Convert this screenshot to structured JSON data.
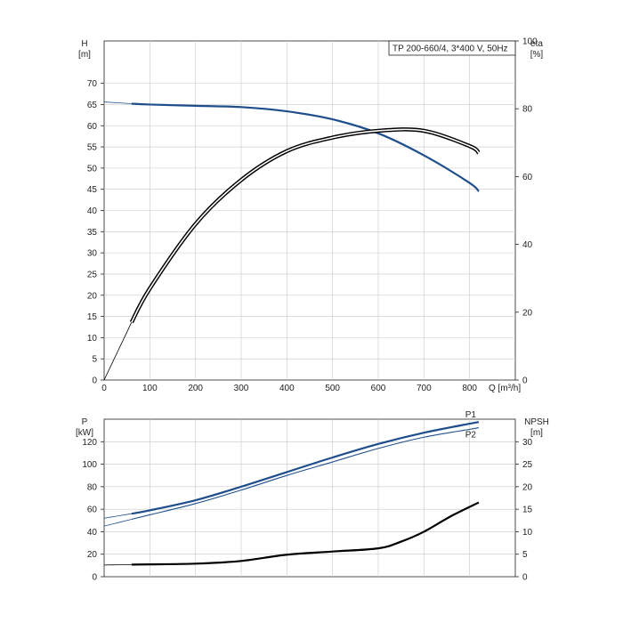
{
  "chart_data": [
    {
      "type": "line",
      "title": "TP 200-660/4, 3*400 V, 50Hz",
      "xlabel": "Q [m³/h]",
      "xlim": [
        0,
        900
      ],
      "x_ticks": [
        0,
        100,
        200,
        300,
        400,
        500,
        600,
        700,
        800
      ],
      "y_left": {
        "label_line1": "H",
        "label_line2": "[m]",
        "lim": [
          0,
          80
        ],
        "ticks": [
          0,
          5,
          10,
          15,
          20,
          25,
          30,
          35,
          40,
          45,
          50,
          55,
          60,
          65,
          70
        ]
      },
      "y_right": {
        "label_line1": "eta",
        "label_line2": "[%]",
        "lim": [
          0,
          100
        ],
        "ticks": [
          0,
          20,
          40,
          60,
          80,
          100
        ]
      },
      "grid": true,
      "series": [
        {
          "id": "H",
          "axis": "left",
          "color": "#1f4e8c",
          "x": [
            0,
            60,
            100,
            200,
            300,
            400,
            500,
            600,
            700,
            800,
            820
          ],
          "y": [
            65.6,
            65.2,
            65.0,
            64.7,
            64.4,
            63.4,
            61.5,
            58.2,
            53.0,
            46.5,
            44.5
          ]
        },
        {
          "id": "eta",
          "axis": "right",
          "color": "#000000",
          "x": [
            0,
            60,
            100,
            200,
            300,
            400,
            500,
            600,
            700,
            800,
            820
          ],
          "y": [
            0,
            17,
            27,
            46,
            59,
            67.5,
            71.5,
            73.5,
            73.5,
            69,
            67
          ]
        }
      ]
    },
    {
      "type": "line",
      "xlim": [
        0,
        900
      ],
      "y_left": {
        "label_line1": "P",
        "label_line2": "[kW]",
        "lim": [
          0,
          140
        ],
        "ticks": [
          0,
          20,
          40,
          60,
          80,
          100,
          120
        ]
      },
      "y_right": {
        "label_line1": "NPSH",
        "label_line2": "[m]",
        "lim": [
          0,
          35
        ],
        "ticks": [
          0,
          5,
          10,
          15,
          20,
          25,
          30
        ]
      },
      "grid": true,
      "series": [
        {
          "name": "P1",
          "id": "P1",
          "axis": "left",
          "color": "#1f4e8c",
          "x": [
            0,
            60,
            100,
            200,
            300,
            400,
            500,
            600,
            700,
            800,
            820
          ],
          "y": [
            52,
            56,
            59,
            68,
            80,
            93,
            106,
            118,
            128,
            136,
            137.5
          ]
        },
        {
          "name": "P2",
          "id": "P2",
          "axis": "left",
          "color": "#1f4e8c",
          "x": [
            0,
            60,
            100,
            200,
            300,
            400,
            500,
            600,
            700,
            800,
            820
          ],
          "y": [
            45,
            51,
            55,
            65,
            77,
            90,
            102,
            114,
            124,
            131,
            132.5
          ]
        },
        {
          "id": "NPSH",
          "axis": "right",
          "color": "#000000",
          "x": [
            0,
            60,
            100,
            200,
            300,
            400,
            500,
            600,
            650,
            700,
            760,
            820
          ],
          "y": [
            2.6,
            2.7,
            2.75,
            2.9,
            3.5,
            4.9,
            5.6,
            6.3,
            7.8,
            10.0,
            13.5,
            16.5
          ]
        }
      ]
    }
  ]
}
